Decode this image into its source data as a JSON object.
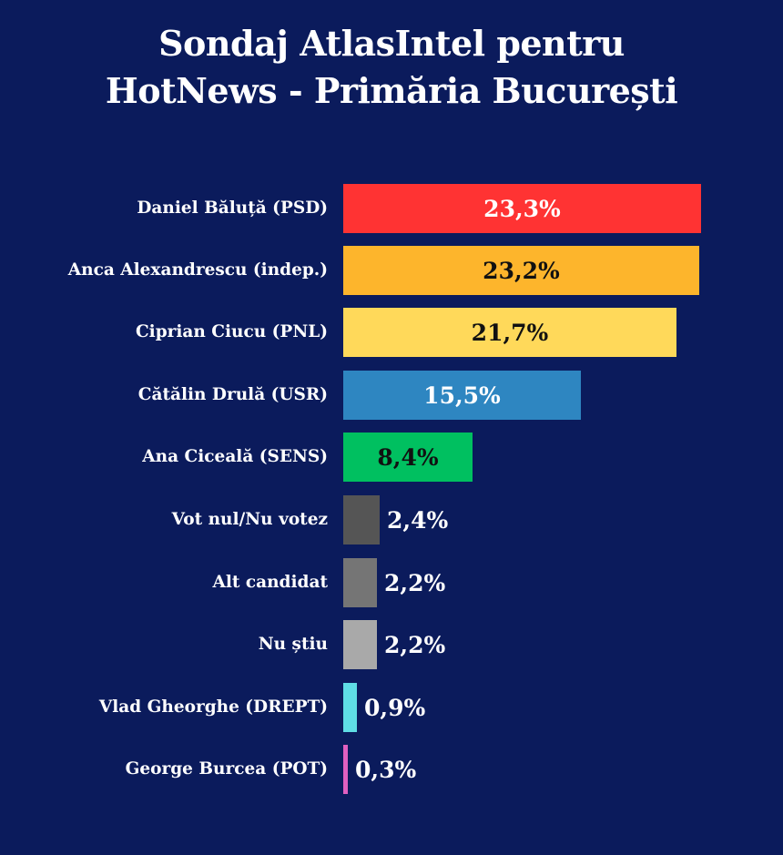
{
  "title_line1": "Sondaj AtlasIntel pentru",
  "title_line2": "HotNews - Primăria București",
  "chart_data": {
    "type": "bar",
    "orientation": "horizontal",
    "title": "Sondaj AtlasIntel pentru HotNews - Primăria București",
    "xlabel": "",
    "ylabel": "",
    "categories": [
      "Daniel Băluță (PSD)",
      "Anca Alexandrescu (indep.)",
      "Ciprian Ciucu (PNL)",
      "Cătălin Drulă (USR)",
      "Ana Ciceală (SENS)",
      "Vot nul/Nu votez",
      "Alt candidat",
      "Nu știu",
      "Vlad Gheorghe (DREPT)",
      "George Burcea (POT)"
    ],
    "values": [
      23.3,
      23.2,
      21.7,
      15.5,
      8.4,
      2.4,
      2.2,
      2.2,
      0.9,
      0.3
    ],
    "value_labels": [
      "23,3%",
      "23,2%",
      "21,7%",
      "15,5%",
      "8,4%",
      "2,4%",
      "2,2%",
      "2,2%",
      "0,9%",
      "0,3%"
    ],
    "colors": [
      "#ff3333",
      "#fdb52c",
      "#ffd95a",
      "#2e86c1",
      "#00c060",
      "#555555",
      "#757575",
      "#a9a9a9",
      "#5fdde5",
      "#e060c0"
    ],
    "grid": false,
    "legend": "none"
  },
  "rows": [
    {
      "label": "Daniel Băluță (PSD)",
      "value": "23,3%",
      "pct": 23.3,
      "color": "#ff3333",
      "text_color": "#ffffff",
      "inside": true
    },
    {
      "label": "Anca Alexandrescu (indep.)",
      "value": "23,2%",
      "pct": 23.2,
      "color": "#fdb52c",
      "text_color": "#111111",
      "inside": true
    },
    {
      "label": "Ciprian Ciucu (PNL)",
      "value": "21,7%",
      "pct": 21.7,
      "color": "#ffd95a",
      "text_color": "#111111",
      "inside": true
    },
    {
      "label": "Cătălin Drulă (USR)",
      "value": "15,5%",
      "pct": 15.5,
      "color": "#2e86c1",
      "text_color": "#ffffff",
      "inside": true
    },
    {
      "label": "Ana Ciceală (SENS)",
      "value": "8,4%",
      "pct": 8.4,
      "color": "#00c060",
      "text_color": "#111111",
      "inside": true
    },
    {
      "label": "Vot nul/Nu votez",
      "value": "2,4%",
      "pct": 2.4,
      "color": "#555555",
      "text_color": "#ffffff",
      "inside": false
    },
    {
      "label": "Alt candidat",
      "value": "2,2%",
      "pct": 2.2,
      "color": "#757575",
      "text_color": "#ffffff",
      "inside": false
    },
    {
      "label": "Nu știu",
      "value": "2,2%",
      "pct": 2.2,
      "color": "#a9a9a9",
      "text_color": "#ffffff",
      "inside": false
    },
    {
      "label": "Vlad Gheorghe (DREPT)",
      "value": "0,9%",
      "pct": 0.9,
      "color": "#5fdde5",
      "text_color": "#ffffff",
      "inside": false
    },
    {
      "label": "George Burcea (POT)",
      "value": "0,3%",
      "pct": 0.3,
      "color": "#e060c0",
      "text_color": "#ffffff",
      "inside": false
    }
  ]
}
